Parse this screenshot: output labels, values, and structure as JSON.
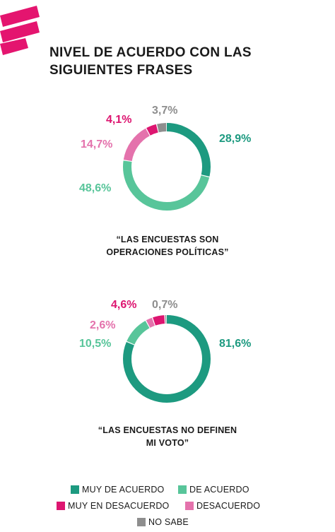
{
  "title_lines": [
    "NIVEL DE ACUERDO CON LAS",
    "SIGUIENTES FRASES"
  ],
  "colors": {
    "muy_de_acuerdo": "#1d9a80",
    "de_acuerdo": "#58c59a",
    "muy_en_desacuerdo": "#dd1570",
    "desacuerdo": "#e472ac",
    "no_sabe": "#8e8e8e",
    "logo": "#e4156f"
  },
  "chart_data": [
    {
      "type": "pie",
      "donut": true,
      "caption_lines": [
        "“LAS ENCUESTAS SON",
        "OPERACIONES POLÍTICAS”"
      ],
      "series": [
        {
          "name": "MUY DE ACUERDO",
          "value": 28.9,
          "label": "28,9%"
        },
        {
          "name": "DE ACUERDO",
          "value": 48.6,
          "label": "48,6%"
        },
        {
          "name": "DESACUERDO",
          "value": 14.7,
          "label": "14,7%"
        },
        {
          "name": "MUY EN DESACUERDO",
          "value": 4.1,
          "label": "4,1%"
        },
        {
          "name": "NO SABE",
          "value": 3.7,
          "label": "3,7%"
        }
      ]
    },
    {
      "type": "pie",
      "donut": true,
      "caption_lines": [
        "“LAS ENCUESTAS NO DEFINEN",
        "MI VOTO”"
      ],
      "series": [
        {
          "name": "MUY DE ACUERDO",
          "value": 81.6,
          "label": "81,6%"
        },
        {
          "name": "DE ACUERDO",
          "value": 10.5,
          "label": "10,5%"
        },
        {
          "name": "DESACUERDO",
          "value": 2.6,
          "label": "2,6%"
        },
        {
          "name": "MUY EN DESACUERDO",
          "value": 4.6,
          "label": "4,6%"
        },
        {
          "name": "NO SABE",
          "value": 0.7,
          "label": "0,7%"
        }
      ]
    }
  ],
  "legend": [
    {
      "label": "MUY DE ACUERDO",
      "color": "#1d9a80"
    },
    {
      "label": "DE ACUERDO",
      "color": "#58c59a"
    },
    {
      "label": "MUY EN DESACUERDO",
      "color": "#dd1570"
    },
    {
      "label": "DESACUERDO",
      "color": "#e472ac"
    },
    {
      "label": "NO SABE",
      "color": "#8e8e8e"
    }
  ]
}
